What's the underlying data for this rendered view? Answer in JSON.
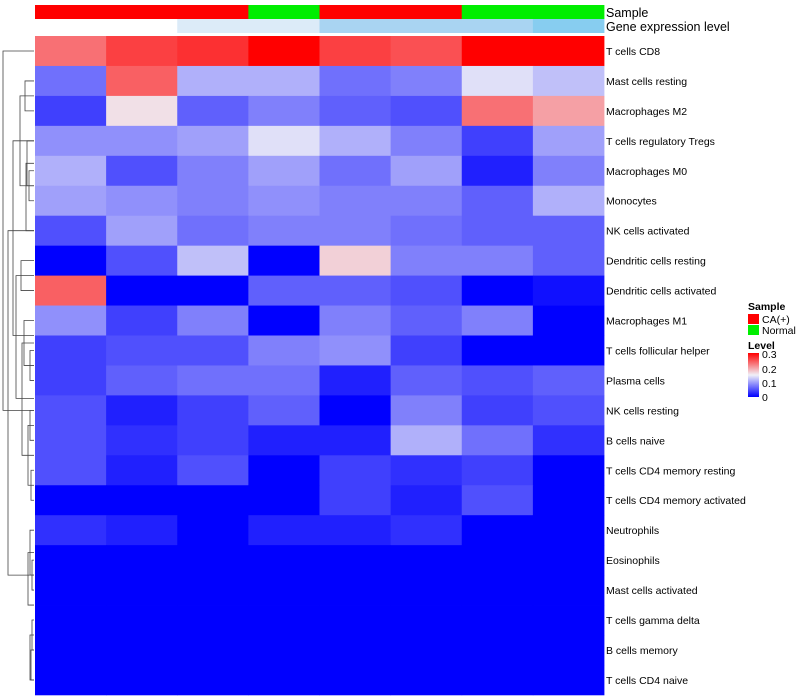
{
  "chart_data": {
    "type": "heatmap",
    "title": "",
    "annotation_rows": [
      "Sample",
      "Gene expression level"
    ],
    "columns": [
      {
        "sample": "CA(+)",
        "expression": "high"
      },
      {
        "sample": "CA(+)",
        "expression": "high"
      },
      {
        "sample": "CA(+)",
        "expression": "mid"
      },
      {
        "sample": "Normal",
        "expression": "mid"
      },
      {
        "sample": "CA(+)",
        "expression": "low"
      },
      {
        "sample": "CA(+)",
        "expression": "low"
      },
      {
        "sample": "Normal",
        "expression": "low"
      },
      {
        "sample": "Normal",
        "expression": "lowest"
      }
    ],
    "rows": [
      "T cells CD8",
      "Mast cells resting",
      "Macrophages M2",
      "T cells regulatory  Tregs",
      "Macrophages M0",
      "Monocytes",
      "NK cells activated",
      "Dendritic cells resting",
      "Dendritic cells activated",
      "Macrophages M1",
      "T cells follicular helper",
      "Plasma cells",
      "NK cells resting",
      "B cells naive",
      "T cells CD4 memory resting",
      "T cells CD4 memory activated",
      "Neutrophils",
      "Eosinophils",
      "Mast cells activated",
      "T cells gamma delta",
      "B cells memory",
      "T cells CD4 naive"
    ],
    "values": [
      [
        0.23,
        0.26,
        0.27,
        0.3,
        0.26,
        0.25,
        0.3,
        0.3
      ],
      [
        0.07,
        0.24,
        0.11,
        0.11,
        0.07,
        0.08,
        0.14,
        0.12
      ],
      [
        0.04,
        0.16,
        0.06,
        0.08,
        0.06,
        0.05,
        0.23,
        0.2
      ],
      [
        0.09,
        0.09,
        0.1,
        0.14,
        0.11,
        0.08,
        0.04,
        0.1
      ],
      [
        0.11,
        0.05,
        0.08,
        0.1,
        0.07,
        0.1,
        0.02,
        0.08
      ],
      [
        0.1,
        0.09,
        0.08,
        0.09,
        0.08,
        0.08,
        0.06,
        0.11
      ],
      [
        0.05,
        0.1,
        0.07,
        0.08,
        0.08,
        0.07,
        0.06,
        0.06
      ],
      [
        0.0,
        0.05,
        0.12,
        0.0,
        0.17,
        0.08,
        0.08,
        0.06
      ],
      [
        0.24,
        0.0,
        0.0,
        0.06,
        0.06,
        0.05,
        0.0,
        0.01
      ],
      [
        0.09,
        0.04,
        0.08,
        0.0,
        0.08,
        0.06,
        0.08,
        0.0
      ],
      [
        0.04,
        0.05,
        0.05,
        0.08,
        0.09,
        0.04,
        0.0,
        0.0
      ],
      [
        0.04,
        0.06,
        0.07,
        0.07,
        0.02,
        0.06,
        0.05,
        0.06
      ],
      [
        0.05,
        0.02,
        0.04,
        0.06,
        0.0,
        0.08,
        0.04,
        0.05
      ],
      [
        0.05,
        0.03,
        0.04,
        0.02,
        0.02,
        0.11,
        0.07,
        0.03
      ],
      [
        0.05,
        0.02,
        0.05,
        0.0,
        0.04,
        0.03,
        0.04,
        0.0
      ],
      [
        0.0,
        0.0,
        0.0,
        0.0,
        0.04,
        0.02,
        0.05,
        0.0
      ],
      [
        0.03,
        0.02,
        0.0,
        0.02,
        0.02,
        0.03,
        0.0,
        0.0
      ],
      [
        0.0,
        0.0,
        0.0,
        0.0,
        0.0,
        0.0,
        0.0,
        0.0
      ],
      [
        0.0,
        0.0,
        0.0,
        0.0,
        0.0,
        0.0,
        0.0,
        0.0
      ],
      [
        0.0,
        0.0,
        0.0,
        0.0,
        0.0,
        0.0,
        0.0,
        0.0
      ],
      [
        0.0,
        0.0,
        0.0,
        0.0,
        0.0,
        0.0,
        0.0,
        0.0
      ],
      [
        0.0,
        0.0,
        0.0,
        0.0,
        0.0,
        0.0,
        0.0,
        0.0
      ]
    ],
    "color_scale": {
      "min": 0,
      "max": 0.3,
      "low": "#0000ff",
      "mid": "#f0f0f8",
      "high": "#ff0000",
      "mid_value": 0.15
    },
    "legend": {
      "sample_title": "Sample",
      "sample_entries": [
        {
          "label": "CA(+)",
          "color": "#ff0000"
        },
        {
          "label": "Normal",
          "color": "#00ee00"
        }
      ],
      "level_title": "Level",
      "level_ticks": [
        "0.3",
        "0.2",
        "0.1",
        "0"
      ],
      "position": "right"
    },
    "expression_colors": {
      "high": "#ffffff",
      "mid": "#dcebf8",
      "low": "#a9d4f2",
      "lowest": "#87cdf0"
    }
  }
}
